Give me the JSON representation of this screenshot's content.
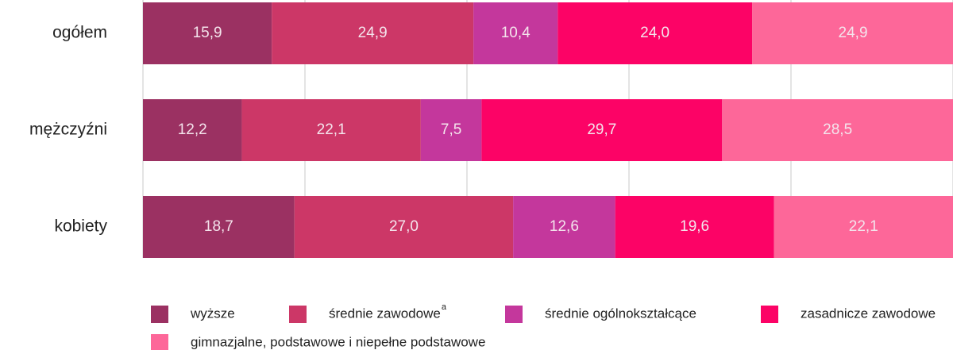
{
  "chart_data": {
    "type": "stacked-bar-horizontal",
    "categories": [
      "ogółem",
      "mężczyźni",
      "kobiety"
    ],
    "series": [
      {
        "name": "wyższe",
        "color": "#9b3162",
        "values": [
          15.9,
          12.2,
          18.7
        ],
        "value_labels": [
          "15,9",
          "12,2",
          "18,7"
        ]
      },
      {
        "name": "średnie zawodowe",
        "superscript": "a",
        "color": "#cc3767",
        "values": [
          24.9,
          22.1,
          27.0
        ],
        "value_labels": [
          "24,9",
          "22,1",
          "27,0"
        ]
      },
      {
        "name": "średnie ogólnokształcące",
        "color": "#c4379c",
        "values": [
          10.4,
          7.5,
          12.6
        ],
        "value_labels": [
          "10,4",
          "7,5",
          "12,6"
        ]
      },
      {
        "name": "zasadnicze zawodowe",
        "color": "#fc0366",
        "values": [
          24.0,
          29.7,
          19.6
        ],
        "value_labels": [
          "24,0",
          "29,7",
          "19,6"
        ]
      },
      {
        "name": "gimnazjalne, podstawowe i niepełne podstawowe",
        "color": "#fd6799",
        "values": [
          24.9,
          28.5,
          22.1
        ],
        "value_labels": [
          "24,9",
          "28,5",
          "22,1"
        ]
      }
    ],
    "xlim": [
      0,
      100
    ],
    "xticks": [
      0,
      20,
      40,
      60,
      80,
      100
    ],
    "grid": true
  }
}
